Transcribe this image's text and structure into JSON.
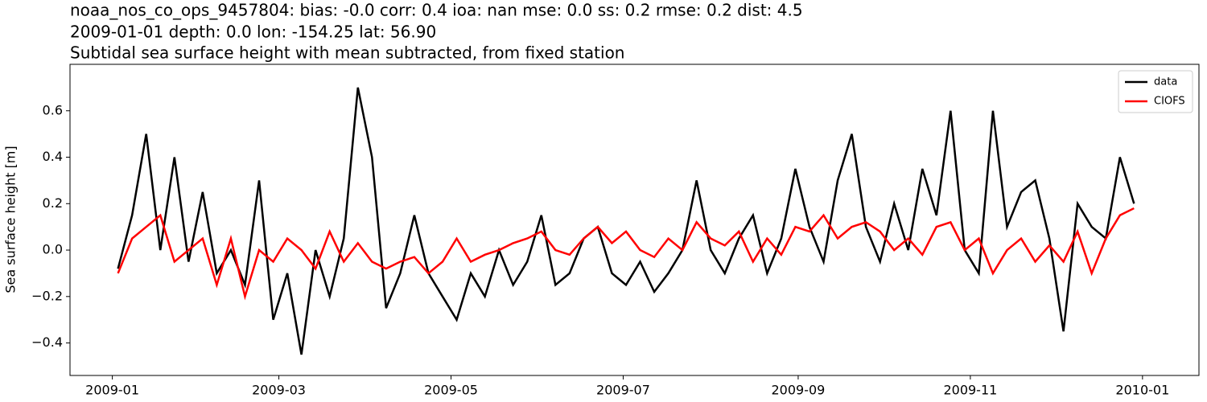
{
  "chart_data": {
    "type": "line",
    "title": "noaa_nos_co_ops_9457804: bias: -0.0  corr: 0.4  ioa: nan  mse: 0.0  ss: 0.2  rmse: 0.2  dist: 4.5",
    "subtitle": "2009-01-01 depth: 0.0 lon: -154.25 lat: 56.90",
    "subtitle2": "Subtidal sea surface height with mean subtracted, from fixed station",
    "y_label": "Sea surface height [m]",
    "x": [
      "2009-01-03",
      "2009-01-08",
      "2009-01-13",
      "2009-01-18",
      "2009-01-23",
      "2009-01-28",
      "2009-02-02",
      "2009-02-07",
      "2009-02-12",
      "2009-02-17",
      "2009-02-22",
      "2009-02-27",
      "2009-03-04",
      "2009-03-09",
      "2009-03-14",
      "2009-03-19",
      "2009-03-24",
      "2009-03-29",
      "2009-04-03",
      "2009-04-08",
      "2009-04-13",
      "2009-04-18",
      "2009-04-23",
      "2009-04-28",
      "2009-05-03",
      "2009-05-08",
      "2009-05-13",
      "2009-05-18",
      "2009-05-23",
      "2009-05-28",
      "2009-06-02",
      "2009-06-07",
      "2009-06-12",
      "2009-06-17",
      "2009-06-22",
      "2009-06-27",
      "2009-07-02",
      "2009-07-07",
      "2009-07-12",
      "2009-07-17",
      "2009-07-22",
      "2009-07-27",
      "2009-08-01",
      "2009-08-06",
      "2009-08-11",
      "2009-08-16",
      "2009-08-21",
      "2009-08-26",
      "2009-08-31",
      "2009-09-05",
      "2009-09-10",
      "2009-09-15",
      "2009-09-20",
      "2009-09-25",
      "2009-09-30",
      "2009-10-05",
      "2009-10-10",
      "2009-10-15",
      "2009-10-20",
      "2009-10-25",
      "2009-10-30",
      "2009-11-04",
      "2009-11-09",
      "2009-11-14",
      "2009-11-19",
      "2009-11-24",
      "2009-11-29",
      "2009-12-04",
      "2009-12-09",
      "2009-12-14",
      "2009-12-19",
      "2009-12-24",
      "2009-12-29"
    ],
    "series": [
      {
        "name": "data",
        "color": "#000000",
        "values": [
          -0.08,
          0.15,
          0.5,
          0.0,
          0.4,
          -0.05,
          0.25,
          -0.1,
          0.0,
          -0.15,
          0.3,
          -0.3,
          -0.1,
          -0.45,
          0.0,
          -0.2,
          0.05,
          0.7,
          0.4,
          -0.25,
          -0.1,
          0.15,
          -0.1,
          -0.2,
          -0.3,
          -0.1,
          -0.2,
          0.0,
          -0.15,
          -0.05,
          0.15,
          -0.15,
          -0.1,
          0.05,
          0.1,
          -0.1,
          -0.15,
          -0.05,
          -0.18,
          -0.1,
          0.0,
          0.3,
          0.0,
          -0.1,
          0.05,
          0.15,
          -0.1,
          0.05,
          0.35,
          0.1,
          -0.05,
          0.3,
          0.5,
          0.1,
          -0.05,
          0.2,
          0.0,
          0.35,
          0.15,
          0.6,
          0.0,
          -0.1,
          0.6,
          0.1,
          0.25,
          0.3,
          0.05,
          -0.35,
          0.2,
          0.1,
          0.05,
          0.4,
          0.2
        ]
      },
      {
        "name": "CIOFS",
        "color": "#ff0000",
        "values": [
          -0.1,
          0.05,
          0.1,
          0.15,
          -0.05,
          0.0,
          0.05,
          -0.15,
          0.05,
          -0.2,
          0.0,
          -0.05,
          0.05,
          0.0,
          -0.08,
          0.08,
          -0.05,
          0.03,
          -0.05,
          -0.08,
          -0.05,
          -0.03,
          -0.1,
          -0.05,
          0.05,
          -0.05,
          -0.02,
          0.0,
          0.03,
          0.05,
          0.08,
          0.0,
          -0.02,
          0.05,
          0.1,
          0.03,
          0.08,
          0.0,
          -0.03,
          0.05,
          0.0,
          0.12,
          0.05,
          0.02,
          0.08,
          -0.05,
          0.05,
          -0.02,
          0.1,
          0.08,
          0.15,
          0.05,
          0.1,
          0.12,
          0.08,
          0.0,
          0.05,
          -0.02,
          0.1,
          0.12,
          0.0,
          0.05,
          -0.1,
          0.0,
          0.05,
          -0.05,
          0.02,
          -0.05,
          0.08,
          -0.1,
          0.05,
          0.15,
          0.18
        ]
      }
    ],
    "xlim": [
      "2008-12-17",
      "2010-01-21"
    ],
    "xticks": [
      {
        "value": "2009-01-01",
        "label": "2009-01"
      },
      {
        "value": "2009-03-01",
        "label": "2009-03"
      },
      {
        "value": "2009-05-01",
        "label": "2009-05"
      },
      {
        "value": "2009-07-01",
        "label": "2009-07"
      },
      {
        "value": "2009-09-01",
        "label": "2009-09"
      },
      {
        "value": "2009-11-01",
        "label": "2009-11"
      },
      {
        "value": "2010-01-01",
        "label": "2010-01"
      }
    ],
    "ylim": [
      -0.54,
      0.8
    ],
    "yticks": [
      {
        "value": -0.4,
        "label": "−0.4"
      },
      {
        "value": -0.2,
        "label": "−0.2"
      },
      {
        "value": 0,
        "label": "0.0"
      },
      0.2,
      0.4,
      0.6
    ],
    "legend": "upper right"
  }
}
